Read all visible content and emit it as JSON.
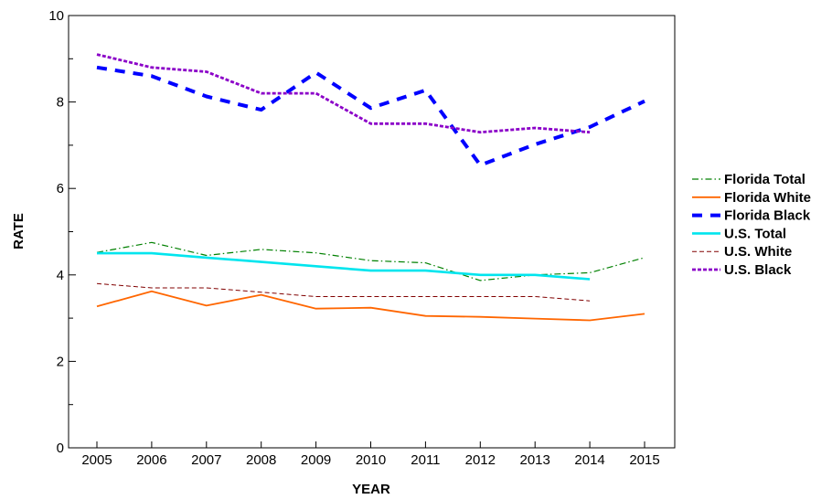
{
  "chart_data": {
    "type": "line",
    "title": "",
    "xlabel": "YEAR",
    "ylabel": "RATE",
    "x": [
      2005,
      2006,
      2007,
      2008,
      2009,
      2010,
      2011,
      2012,
      2013,
      2014,
      2015
    ],
    "x_tick_labels": [
      "2005",
      "2006",
      "2007",
      "2008",
      "2009",
      "2010",
      "2011",
      "2012",
      "2013",
      "2014",
      "2015"
    ],
    "ylim": [
      0,
      10
    ],
    "y_ticks": [
      0,
      2,
      4,
      6,
      8,
      10
    ],
    "y_tick_labels": [
      "0",
      "2",
      "4",
      "6",
      "8",
      "10"
    ],
    "grid": false,
    "legend_position": "right",
    "series": [
      {
        "name": "Florida Total",
        "color": "#008000",
        "style": "dash-dot",
        "values": [
          4.52,
          4.75,
          4.45,
          4.59,
          4.51,
          4.33,
          4.28,
          3.87,
          4.0,
          4.05,
          4.4
        ]
      },
      {
        "name": "Florida White",
        "color": "#ff6600",
        "style": "solid",
        "values": [
          3.27,
          3.62,
          3.29,
          3.54,
          3.22,
          3.24,
          3.05,
          3.03,
          2.99,
          2.95,
          3.1
        ]
      },
      {
        "name": "Florida Black",
        "color": "#0000ff",
        "style": "bold-dash",
        "values": [
          8.8,
          8.6,
          8.13,
          7.82,
          8.68,
          7.86,
          8.27,
          6.54,
          7.02,
          7.42,
          8.02
        ]
      },
      {
        "name": "U.S. Total",
        "color": "#00e5ee",
        "style": "thick-solid",
        "values": [
          4.5,
          4.5,
          4.4,
          4.3,
          4.2,
          4.1,
          4.1,
          4.0,
          4.0,
          3.9,
          null
        ]
      },
      {
        "name": "U.S. White",
        "color": "#800000",
        "style": "thin-dash",
        "values": [
          3.8,
          3.7,
          3.7,
          3.6,
          3.5,
          3.5,
          3.5,
          3.5,
          3.5,
          3.4,
          null
        ]
      },
      {
        "name": "U.S. Black",
        "color": "#8b00c8",
        "style": "dotted",
        "values": [
          9.1,
          8.8,
          8.7,
          8.2,
          8.2,
          7.5,
          7.5,
          7.3,
          7.4,
          7.3,
          null
        ]
      }
    ]
  }
}
